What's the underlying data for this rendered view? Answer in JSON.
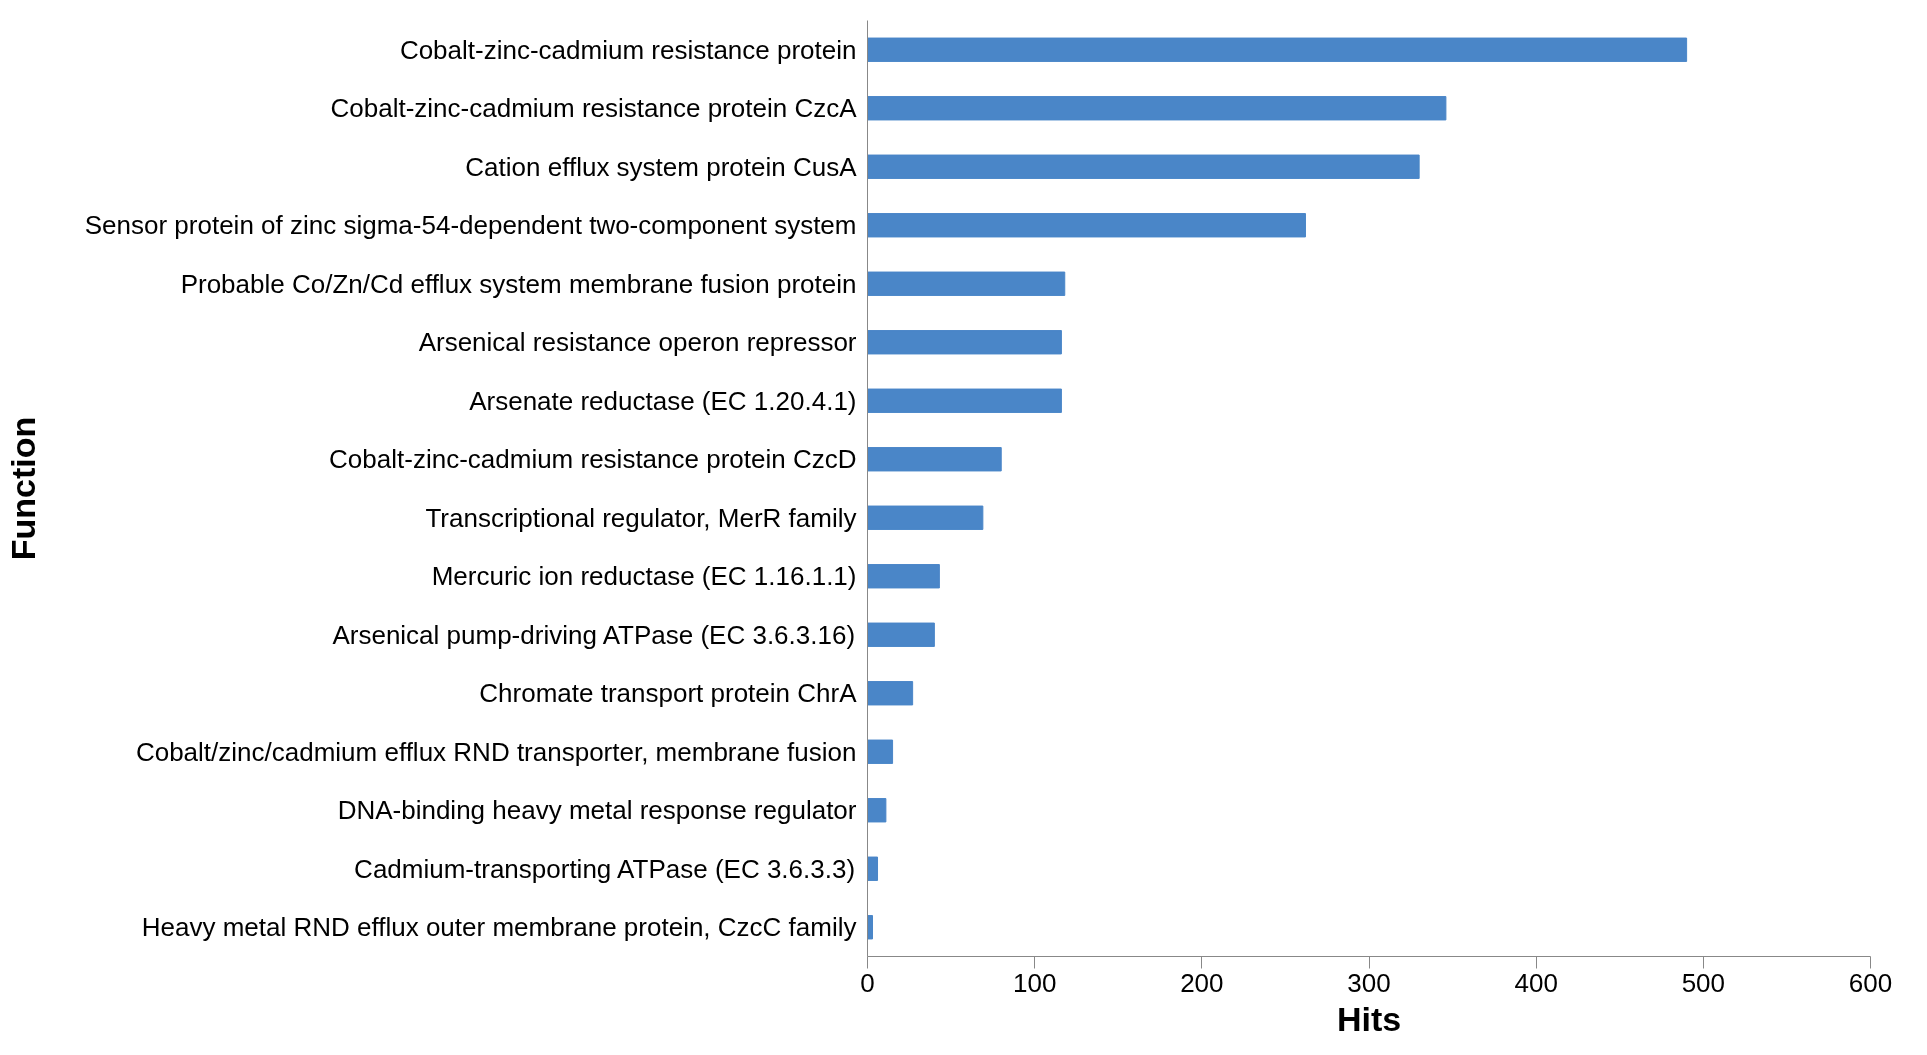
{
  "chart_data": {
    "type": "bar",
    "orientation": "horizontal",
    "xlabel": "Hits",
    "ylabel": "Function",
    "categories": [
      "Cobalt-zinc-cadmium resistance protein",
      "Cobalt-zinc-cadmium resistance protein CzcA",
      "Cation efflux system protein CusA",
      "Sensor protein of zinc sigma-54-dependent two-component system",
      "Probable Co/Zn/Cd efflux system membrane fusion protein",
      "Arsenical resistance operon repressor",
      "Arsenate reductase (EC 1.20.4.1)",
      "Cobalt-zinc-cadmium resistance protein CzcD",
      "Transcriptional regulator, MerR family",
      "Mercuric ion reductase (EC 1.16.1.1)",
      "Arsenical pump-driving ATPase (EC 3.6.3.16)",
      "Chromate transport protein ChrA",
      "Cobalt/zinc/cadmium efflux RND transporter, membrane fusion",
      "DNA-binding heavy metal response regulator",
      "Cadmium-transporting ATPase (EC 3.6.3.3)",
      "Heavy metal RND efflux outer membrane protein, CzcC family"
    ],
    "values": [
      490,
      346,
      330,
      262,
      118,
      116,
      116,
      80,
      69,
      43,
      40,
      27,
      15,
      11,
      6,
      3
    ],
    "color": "#4a86c8",
    "xlim": [
      0,
      600
    ],
    "xticks": [
      0,
      100,
      200,
      300,
      400,
      500,
      600
    ],
    "grid": false
  }
}
